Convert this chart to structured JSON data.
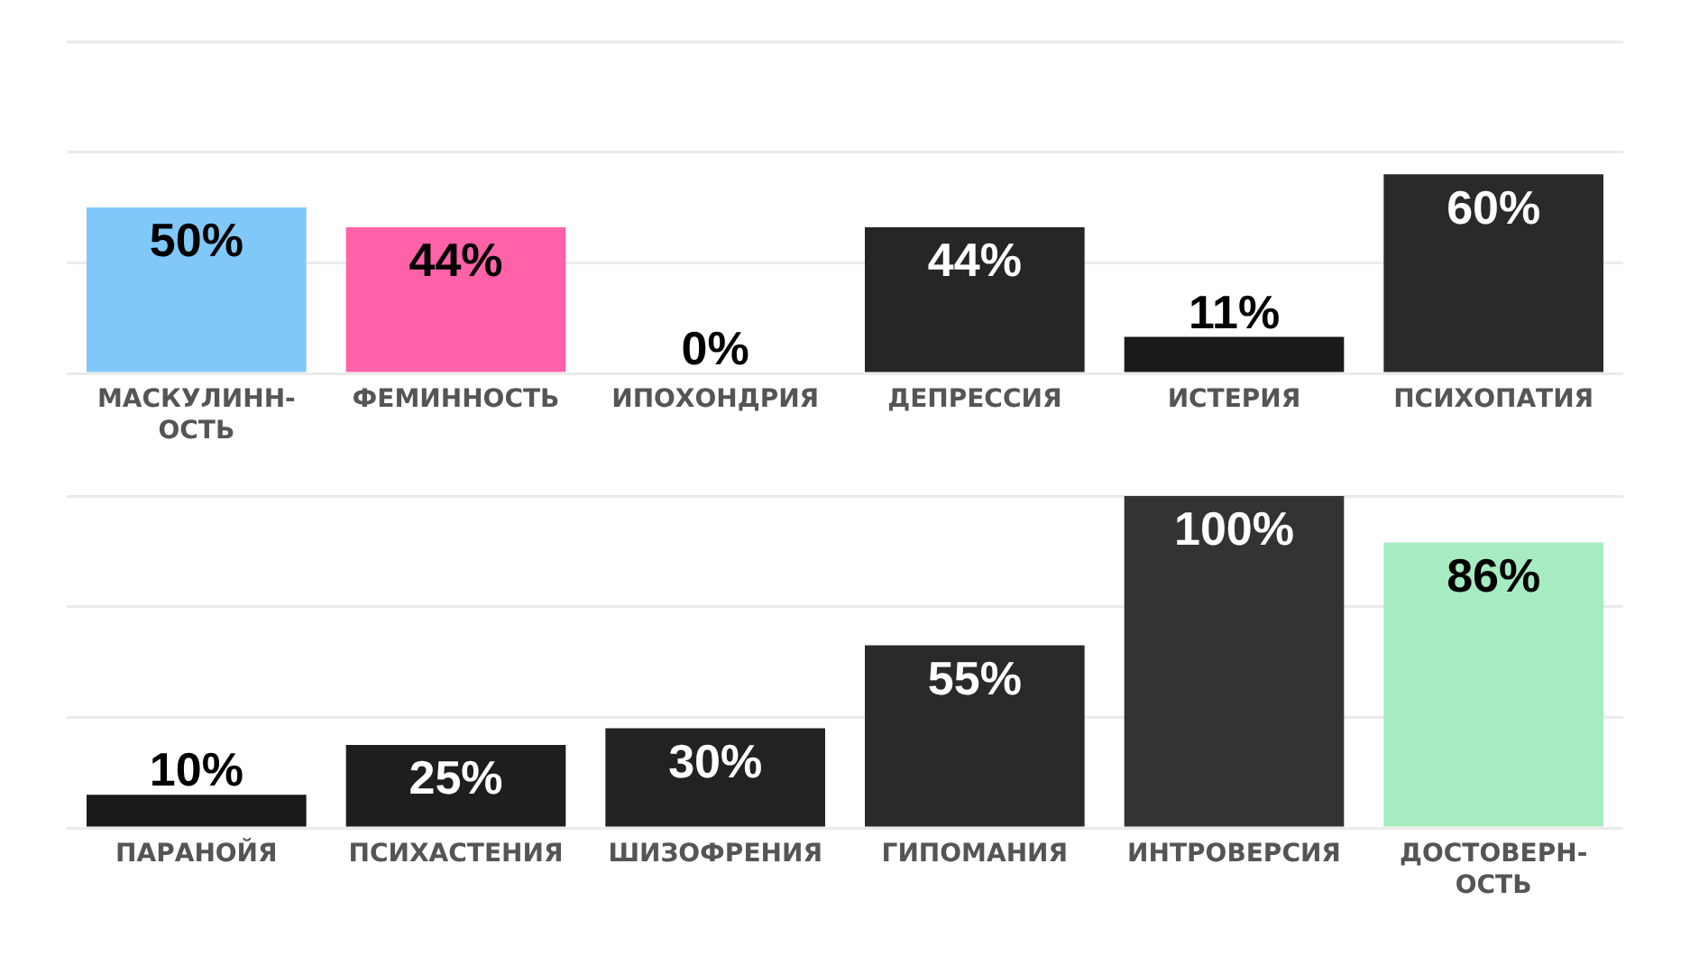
{
  "chart_data": [
    {
      "type": "bar",
      "categories": [
        "МАСКУЛИНН-ОСТЬ",
        "ФЕМИННОСТЬ",
        "ИПОХОНДРИЯ",
        "ДЕПРЕССИЯ",
        "ИСТЕРИЯ",
        "ПСИХОПАТИЯ"
      ],
      "values": [
        50,
        44,
        0,
        44,
        11,
        60
      ],
      "colors": [
        "#80c8fa",
        "#ff62a8",
        "#1a1a1a",
        "#262626",
        "#1a1a1a",
        "#2a2a2a"
      ],
      "value_labels": [
        "50%",
        "44%",
        "0%",
        "44%",
        "11%",
        "60%"
      ],
      "ylim": [
        0,
        100
      ],
      "yticks": [
        {
          "value": 0,
          "label": null
        },
        {
          "value": 33.3,
          "label": null
        },
        {
          "value": 66.7,
          "label": null
        },
        {
          "value": 100,
          "label": null
        }
      ],
      "grid": "y",
      "tick_labels": "x"
    },
    {
      "type": "bar",
      "categories": [
        "ПАРАНОЙЯ",
        "ПСИХАСТЕНИЯ",
        "ШИЗОФРЕНИЯ",
        "ГИПОМАНИЯ",
        "ИНТРОВЕРСИЯ",
        "ДОСТОВЕРН-ОСТЬ"
      ],
      "values": [
        10,
        25,
        30,
        55,
        100,
        86
      ],
      "colors": [
        "#1a1a1a",
        "#1e1e1e",
        "#222222",
        "#2a2a2a",
        "#333333",
        "#a6ecc0"
      ],
      "value_labels": [
        "10%",
        "25%",
        "30%",
        "55%",
        "100%",
        "86%"
      ],
      "ylim": [
        0,
        100
      ],
      "yticks": [
        {
          "value": 0,
          "label": null
        },
        {
          "value": 33.3,
          "label": null
        },
        {
          "value": 66.7,
          "label": null
        },
        {
          "value": 100,
          "label": null
        }
      ],
      "grid": "y",
      "tick_labels": "x"
    }
  ]
}
